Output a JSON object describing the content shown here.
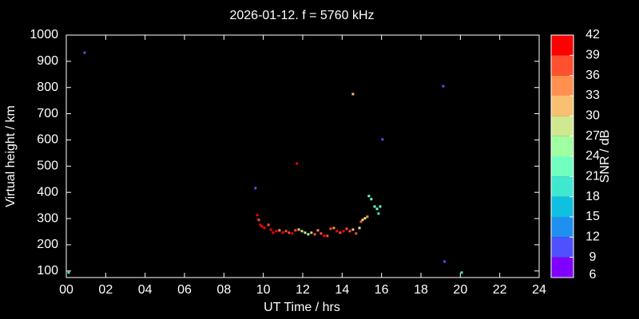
{
  "chart_data": {
    "type": "scatter",
    "title": "2026-01-12. f = 5760 kHz",
    "xlabel": "UT Time / hrs",
    "ylabel": "Virtual height / km",
    "xlim": [
      0,
      24
    ],
    "ylim": [
      75,
      1000
    ],
    "xticks": [
      {
        "value": 0,
        "label": "00"
      },
      {
        "value": 2,
        "label": "02"
      },
      {
        "value": 4,
        "label": "04"
      },
      {
        "value": 6,
        "label": "06"
      },
      {
        "value": 8,
        "label": "08"
      },
      {
        "value": 10,
        "label": "10"
      },
      {
        "value": 12,
        "label": "12"
      },
      {
        "value": 14,
        "label": "14"
      },
      {
        "value": 16,
        "label": "16"
      },
      {
        "value": 18,
        "label": "18"
      },
      {
        "value": 20,
        "label": "20"
      },
      {
        "value": 22,
        "label": "22"
      },
      {
        "value": 24,
        "label": "24"
      }
    ],
    "yticks": [
      100,
      200,
      300,
      400,
      500,
      600,
      700,
      800,
      900,
      1000
    ],
    "colorbar": {
      "label": "SNR / dB",
      "lim": [
        6,
        42
      ],
      "ticks": [
        6,
        9,
        12,
        15,
        18,
        21,
        24,
        27,
        30,
        33,
        36,
        39,
        42
      ],
      "colors": [
        "#8000ff",
        "#5050ff",
        "#2090f0",
        "#10c0e0",
        "#40e8d0",
        "#70ffc0",
        "#a0ffa0",
        "#d0e890",
        "#f8c070",
        "#ff9050",
        "#ff5030",
        "#ff0000"
      ]
    },
    "x": [
      0.12,
      0.93,
      9.6,
      11.7,
      14.55,
      16.05,
      19.13,
      19.2,
      20.07,
      9.69,
      9.77,
      9.85,
      9.93,
      10.05,
      10.26,
      10.38,
      10.5,
      10.66,
      10.82,
      10.99,
      11.15,
      11.31,
      11.47,
      11.63,
      11.8,
      11.96,
      12.12,
      12.28,
      12.44,
      12.61,
      12.77,
      12.93,
      13.09,
      13.25,
      13.42,
      13.58,
      13.74,
      13.9,
      14.07,
      14.23,
      14.39,
      14.55,
      14.71,
      14.88,
      14.96,
      15.04,
      15.16,
      15.28,
      15.36,
      15.48,
      15.65,
      15.77,
      15.85,
      15.93
    ],
    "values": [
      94,
      933,
      416,
      510,
      775,
      602,
      805,
      136,
      94,
      313,
      295,
      276,
      270,
      264,
      276,
      258,
      246,
      252,
      255,
      246,
      252,
      246,
      243,
      255,
      258,
      252,
      246,
      240,
      246,
      240,
      255,
      243,
      234,
      234,
      261,
      264,
      252,
      246,
      252,
      261,
      252,
      258,
      243,
      264,
      288,
      295,
      301,
      307,
      386,
      374,
      346,
      337,
      319,
      346
    ],
    "snr": [
      20,
      10,
      10,
      40,
      31,
      10,
      10,
      10,
      20,
      40,
      38,
      39,
      40,
      40,
      36,
      39,
      40,
      39,
      34,
      40,
      36,
      38,
      40,
      36,
      30,
      27,
      27,
      24,
      30,
      36,
      33,
      38,
      40,
      38,
      36,
      33,
      40,
      36,
      39,
      38,
      36,
      30,
      36,
      27,
      36,
      30,
      27,
      33,
      21,
      21,
      21,
      21,
      18,
      21
    ]
  }
}
